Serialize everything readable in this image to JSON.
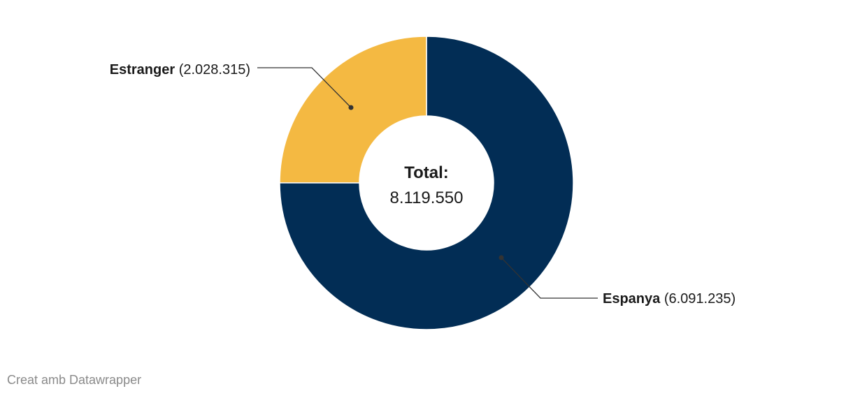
{
  "chart_data": {
    "type": "pie",
    "title": "",
    "center": {
      "title": "Total:",
      "value": "8.119.550"
    },
    "slices": [
      {
        "name": "Espanya",
        "value": 6091235,
        "value_label": "(6.091.235)",
        "color": "#022d55"
      },
      {
        "name": "Estranger",
        "value": 2028315,
        "value_label": "(2.028.315)",
        "color": "#f4b942"
      }
    ]
  },
  "footer": {
    "credit": "Creat amb Datawrapper"
  }
}
